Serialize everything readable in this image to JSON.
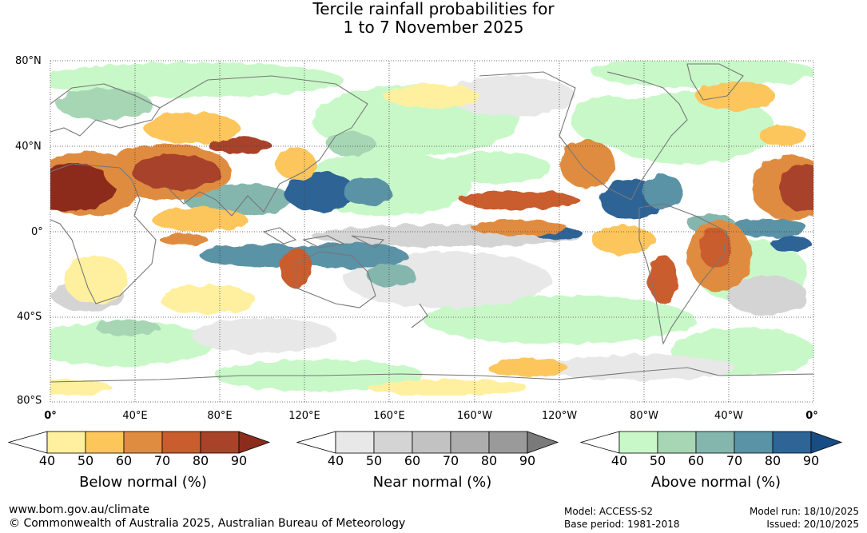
{
  "title": {
    "line1": "Tercile rainfall probabilities for",
    "line2": "1 to 7 November 2025"
  },
  "map": {
    "lat_labels": [
      "80°N",
      "40°N",
      "0°",
      "40°S",
      "80°S"
    ],
    "lon_labels": [
      "0°",
      "40°E",
      "80°E",
      "120°E",
      "160°E",
      "160°W",
      "120°W",
      "80°W",
      "40°W",
      "0°"
    ]
  },
  "legends": [
    {
      "id": "below",
      "caption": "Below normal (%)",
      "ticks": [
        "40",
        "50",
        "60",
        "70",
        "80",
        "90"
      ],
      "colors": [
        "#ffffff",
        "#fff0a0",
        "#fdc65b",
        "#e08c40",
        "#c95d2d",
        "#a8432a",
        "#8c2c1c"
      ]
    },
    {
      "id": "near",
      "caption": "Near normal (%)",
      "ticks": [
        "40",
        "50",
        "60",
        "70",
        "80",
        "90"
      ],
      "colors": [
        "#ffffff",
        "#e8e8e8",
        "#d4d4d4",
        "#c2c2c2",
        "#adadad",
        "#9a9a9a",
        "#7a7a7a"
      ]
    },
    {
      "id": "above",
      "caption": "Above normal (%)",
      "ticks": [
        "40",
        "50",
        "60",
        "70",
        "80",
        "90"
      ],
      "colors": [
        "#ffffff",
        "#c8f8c8",
        "#a6d6b4",
        "#84b6ae",
        "#5a92a6",
        "#2e6496",
        "#184c84"
      ]
    }
  ],
  "footer": {
    "url": "www.bom.gov.au/climate",
    "copyright": "© Commonwealth of Australia 2025, Australian Bureau of Meteorology",
    "model": "Model: ACCESS-S2",
    "base_period": "Base period: 1981-2018",
    "model_run": "Model run: 18/10/2025",
    "issued": "Issued: 20/10/2025"
  }
}
